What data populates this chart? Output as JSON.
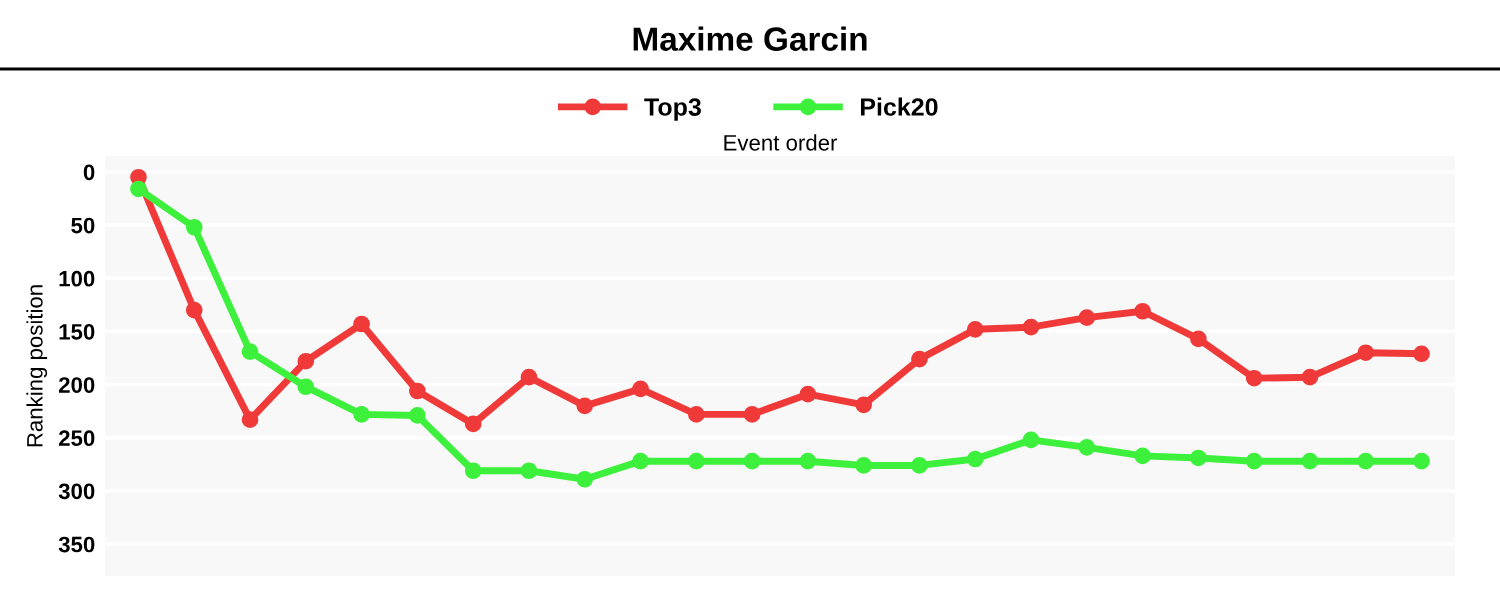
{
  "chart_data": {
    "type": "line",
    "title": "Maxime Garcin",
    "xlabel": "Event order",
    "ylabel": "Ranking position",
    "categories": [
      null,
      null,
      null,
      null,
      null,
      null,
      null,
      null,
      null,
      null,
      null,
      null,
      null,
      null,
      null,
      null,
      null,
      null,
      null,
      null,
      null,
      null,
      null,
      null
    ],
    "series": [
      {
        "name": "Top3",
        "color": "#f03a3a",
        "values": [
          5,
          130,
          233,
          178,
          143,
          206,
          237,
          193,
          220,
          204,
          228,
          228,
          209,
          219,
          176,
          148,
          146,
          137,
          131,
          157,
          194,
          193,
          170,
          171
        ]
      },
      {
        "name": "Pick20",
        "color": "#3cf03c",
        "values": [
          16,
          52,
          169,
          202,
          228,
          229,
          281,
          281,
          289,
          272,
          272,
          272,
          272,
          276,
          276,
          270,
          252,
          259,
          267,
          269,
          272,
          272,
          272,
          272
        ]
      }
    ],
    "ylim": [
      380,
      -15
    ],
    "yticks": [
      0,
      50,
      100,
      150,
      200,
      250,
      300,
      350
    ],
    "grid": "y",
    "legend": "top",
    "marker": "circle",
    "line_style": "solid",
    "tick_labels": "y"
  }
}
